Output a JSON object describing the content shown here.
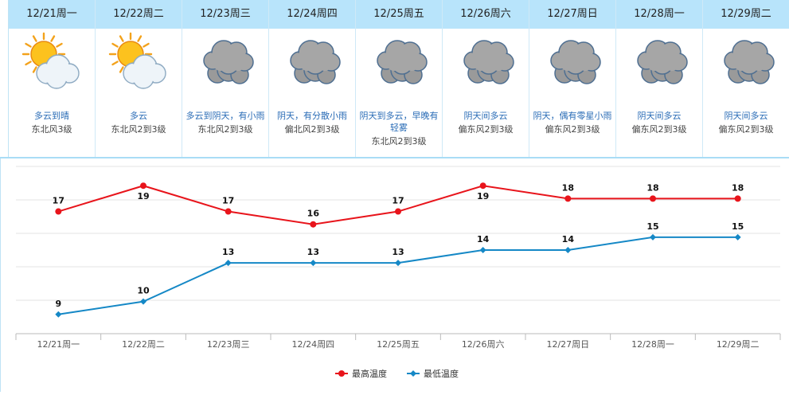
{
  "days": [
    {
      "date": "12/21周一",
      "icon": "partly-cloudy-sun-icon",
      "condition": "多云到晴",
      "wind": "东北风3级"
    },
    {
      "date": "12/22周二",
      "icon": "partly-cloudy-sun-icon",
      "condition": "多云",
      "wind": "东北风2到3级"
    },
    {
      "date": "12/23周三",
      "icon": "overcast-cloud-icon",
      "condition": "多云到阴天，有小雨",
      "wind": "东北风2到3级"
    },
    {
      "date": "12/24周四",
      "icon": "overcast-cloud-icon",
      "condition": "阴天，有分散小雨",
      "wind": "偏北风2到3级"
    },
    {
      "date": "12/25周五",
      "icon": "overcast-cloud-icon",
      "condition": "阴天到多云，早晚有轻雾",
      "wind": "东北风2到3级"
    },
    {
      "date": "12/26周六",
      "icon": "overcast-cloud-icon",
      "condition": "阴天间多云",
      "wind": "偏东风2到3级"
    },
    {
      "date": "12/27周日",
      "icon": "overcast-cloud-icon",
      "condition": "阴天，偶有零星小雨",
      "wind": "偏东风2到3级"
    },
    {
      "date": "12/28周一",
      "icon": "overcast-cloud-icon",
      "condition": "阴天间多云",
      "wind": "偏东风2到3级"
    },
    {
      "date": "12/29周二",
      "icon": "overcast-cloud-icon",
      "condition": "阴天间多云",
      "wind": "偏东风2到3级"
    }
  ],
  "chart_data": {
    "type": "line",
    "categories": [
      "12/21周一",
      "12/22周二",
      "12/23周三",
      "12/24周四",
      "12/25周五",
      "12/26周六",
      "12/27周日",
      "12/28周一",
      "12/29周二"
    ],
    "series": [
      {
        "name": "最高温度",
        "color": "#e8141b",
        "values": [
          17,
          19,
          17,
          16,
          17,
          19,
          18,
          18,
          18
        ]
      },
      {
        "name": "最低温度",
        "color": "#1588c6",
        "values": [
          9,
          10,
          13,
          13,
          13,
          14,
          14,
          15,
          15
        ]
      }
    ],
    "ylim": [
      7.5,
      20.5
    ],
    "grid": true,
    "legend": "bottom-center"
  }
}
